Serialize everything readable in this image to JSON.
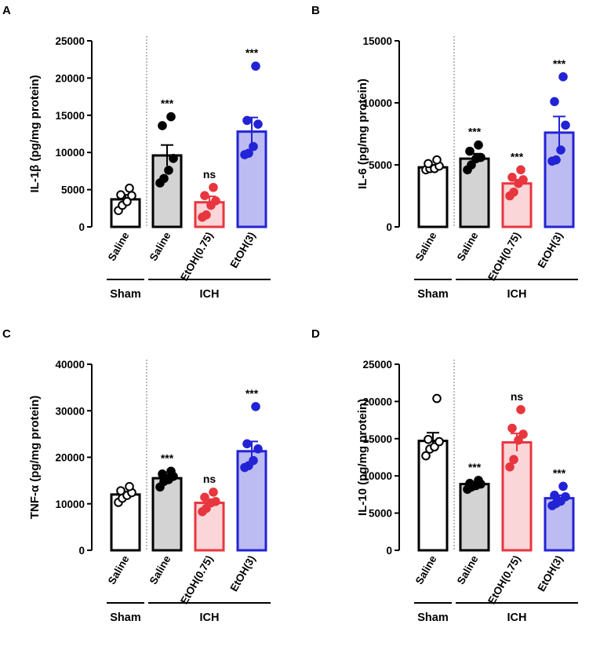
{
  "figure": {
    "categories": [
      "Saline",
      "Saline",
      "EtOH(0.75)",
      "EtOH(3)"
    ],
    "groups": {
      "sham": "Sham",
      "ich": "ICH"
    },
    "colors": {
      "edge": [
        "#000000",
        "#000000",
        "#e8363f",
        "#2323d6"
      ],
      "fill": [
        "#ffffff",
        "#d3d3d3",
        "#fbd6d8",
        "#bcbcf3"
      ],
      "point": [
        "#ffffff",
        "#000000",
        "#e8363f",
        "#2323d6"
      ]
    }
  },
  "chart_data": [
    {
      "type": "bar",
      "panel": "A",
      "ylabel": "IL-1β (pg/mg protein)",
      "ylim": [
        0,
        25000
      ],
      "yticks": [
        0,
        5000,
        10000,
        15000,
        20000,
        25000
      ],
      "ytick_labels": [
        "0",
        "5000",
        "10000",
        "15000",
        "20000",
        "25000"
      ],
      "categories": [
        "Saline",
        "Saline",
        "EtOH(0.75)",
        "EtOH(3)"
      ],
      "means": [
        3700,
        9600,
        3300,
        12800
      ],
      "sem": [
        600,
        1400,
        800,
        1900
      ],
      "points": [
        [
          2200,
          2900,
          3400,
          4200,
          4300,
          5200
        ],
        [
          5900,
          6500,
          7600,
          9200,
          13600,
          14800
        ],
        [
          1300,
          1600,
          2900,
          3500,
          4200,
          5300
        ],
        [
          9700,
          9900,
          10800,
          13800,
          14300,
          21600
        ]
      ],
      "significance": [
        "",
        "***",
        "ns",
        "***"
      ]
    },
    {
      "type": "bar",
      "panel": "B",
      "ylabel": "IL-6 (pg/mg protein)",
      "ylim": [
        0,
        15000
      ],
      "yticks": [
        0,
        5000,
        10000,
        15000
      ],
      "ytick_labels": [
        "0",
        "5000",
        "10000",
        "15000"
      ],
      "categories": [
        "Saline",
        "Saline",
        "EtOH(0.75)",
        "EtOH(3)"
      ],
      "means": [
        4800,
        5500,
        3500,
        7600
      ],
      "sem": [
        200,
        400,
        300,
        1300
      ],
      "points": [
        [
          4600,
          4700,
          4700,
          4900,
          5100,
          5400
        ],
        [
          4600,
          5000,
          5500,
          5600,
          6100,
          6600
        ],
        [
          2500,
          2800,
          3500,
          3800,
          4000,
          4600
        ],
        [
          5300,
          5400,
          6200,
          8200,
          10100,
          12100
        ]
      ],
      "significance": [
        "",
        "***",
        "***",
        "***"
      ]
    },
    {
      "type": "bar",
      "panel": "C",
      "ylabel": "TNF-α (pg/mg protein)",
      "ylim": [
        0,
        40000
      ],
      "yticks": [
        0,
        10000,
        20000,
        30000,
        40000
      ],
      "ytick_labels": [
        "0",
        "10000",
        "20000",
        "30000",
        "40000"
      ],
      "categories": [
        "Saline",
        "Saline",
        "EtOH(0.75)",
        "EtOH(3)"
      ],
      "means": [
        12000,
        15500,
        10200,
        21300
      ],
      "sem": [
        600,
        700,
        700,
        2100
      ],
      "points": [
        [
          10300,
          11200,
          11800,
          12400,
          12800,
          13700
        ],
        [
          13600,
          14800,
          15200,
          15900,
          16400,
          17000
        ],
        [
          8300,
          9000,
          10200,
          10500,
          11400,
          12500
        ],
        [
          17800,
          18200,
          19300,
          21800,
          22900,
          30900
        ]
      ],
      "significance": [
        "",
        "***",
        "ns",
        "***"
      ]
    },
    {
      "type": "bar",
      "panel": "D",
      "ylabel": "IL-10 (pg/mg protein)",
      "ylim": [
        0,
        25000
      ],
      "yticks": [
        0,
        5000,
        10000,
        15000,
        20000,
        25000
      ],
      "ytick_labels": [
        "0",
        "5000",
        "10000",
        "15000",
        "20000",
        "25000"
      ],
      "categories": [
        "Saline",
        "Saline",
        "EtOH(0.75)",
        "EtOH(3)"
      ],
      "means": [
        14700,
        8900,
        14500,
        7000
      ],
      "sem": [
        1100,
        300,
        1200,
        400
      ],
      "points": [
        [
          12700,
          13600,
          13900,
          14600,
          14900,
          20400
        ],
        [
          8200,
          8500,
          8700,
          8900,
          9000,
          9400
        ],
        [
          11200,
          12200,
          14800,
          15600,
          16400,
          18900
        ],
        [
          6000,
          6300,
          6600,
          7200,
          7400,
          8600
        ]
      ],
      "significance": [
        "",
        "***",
        "ns",
        "***"
      ]
    }
  ]
}
